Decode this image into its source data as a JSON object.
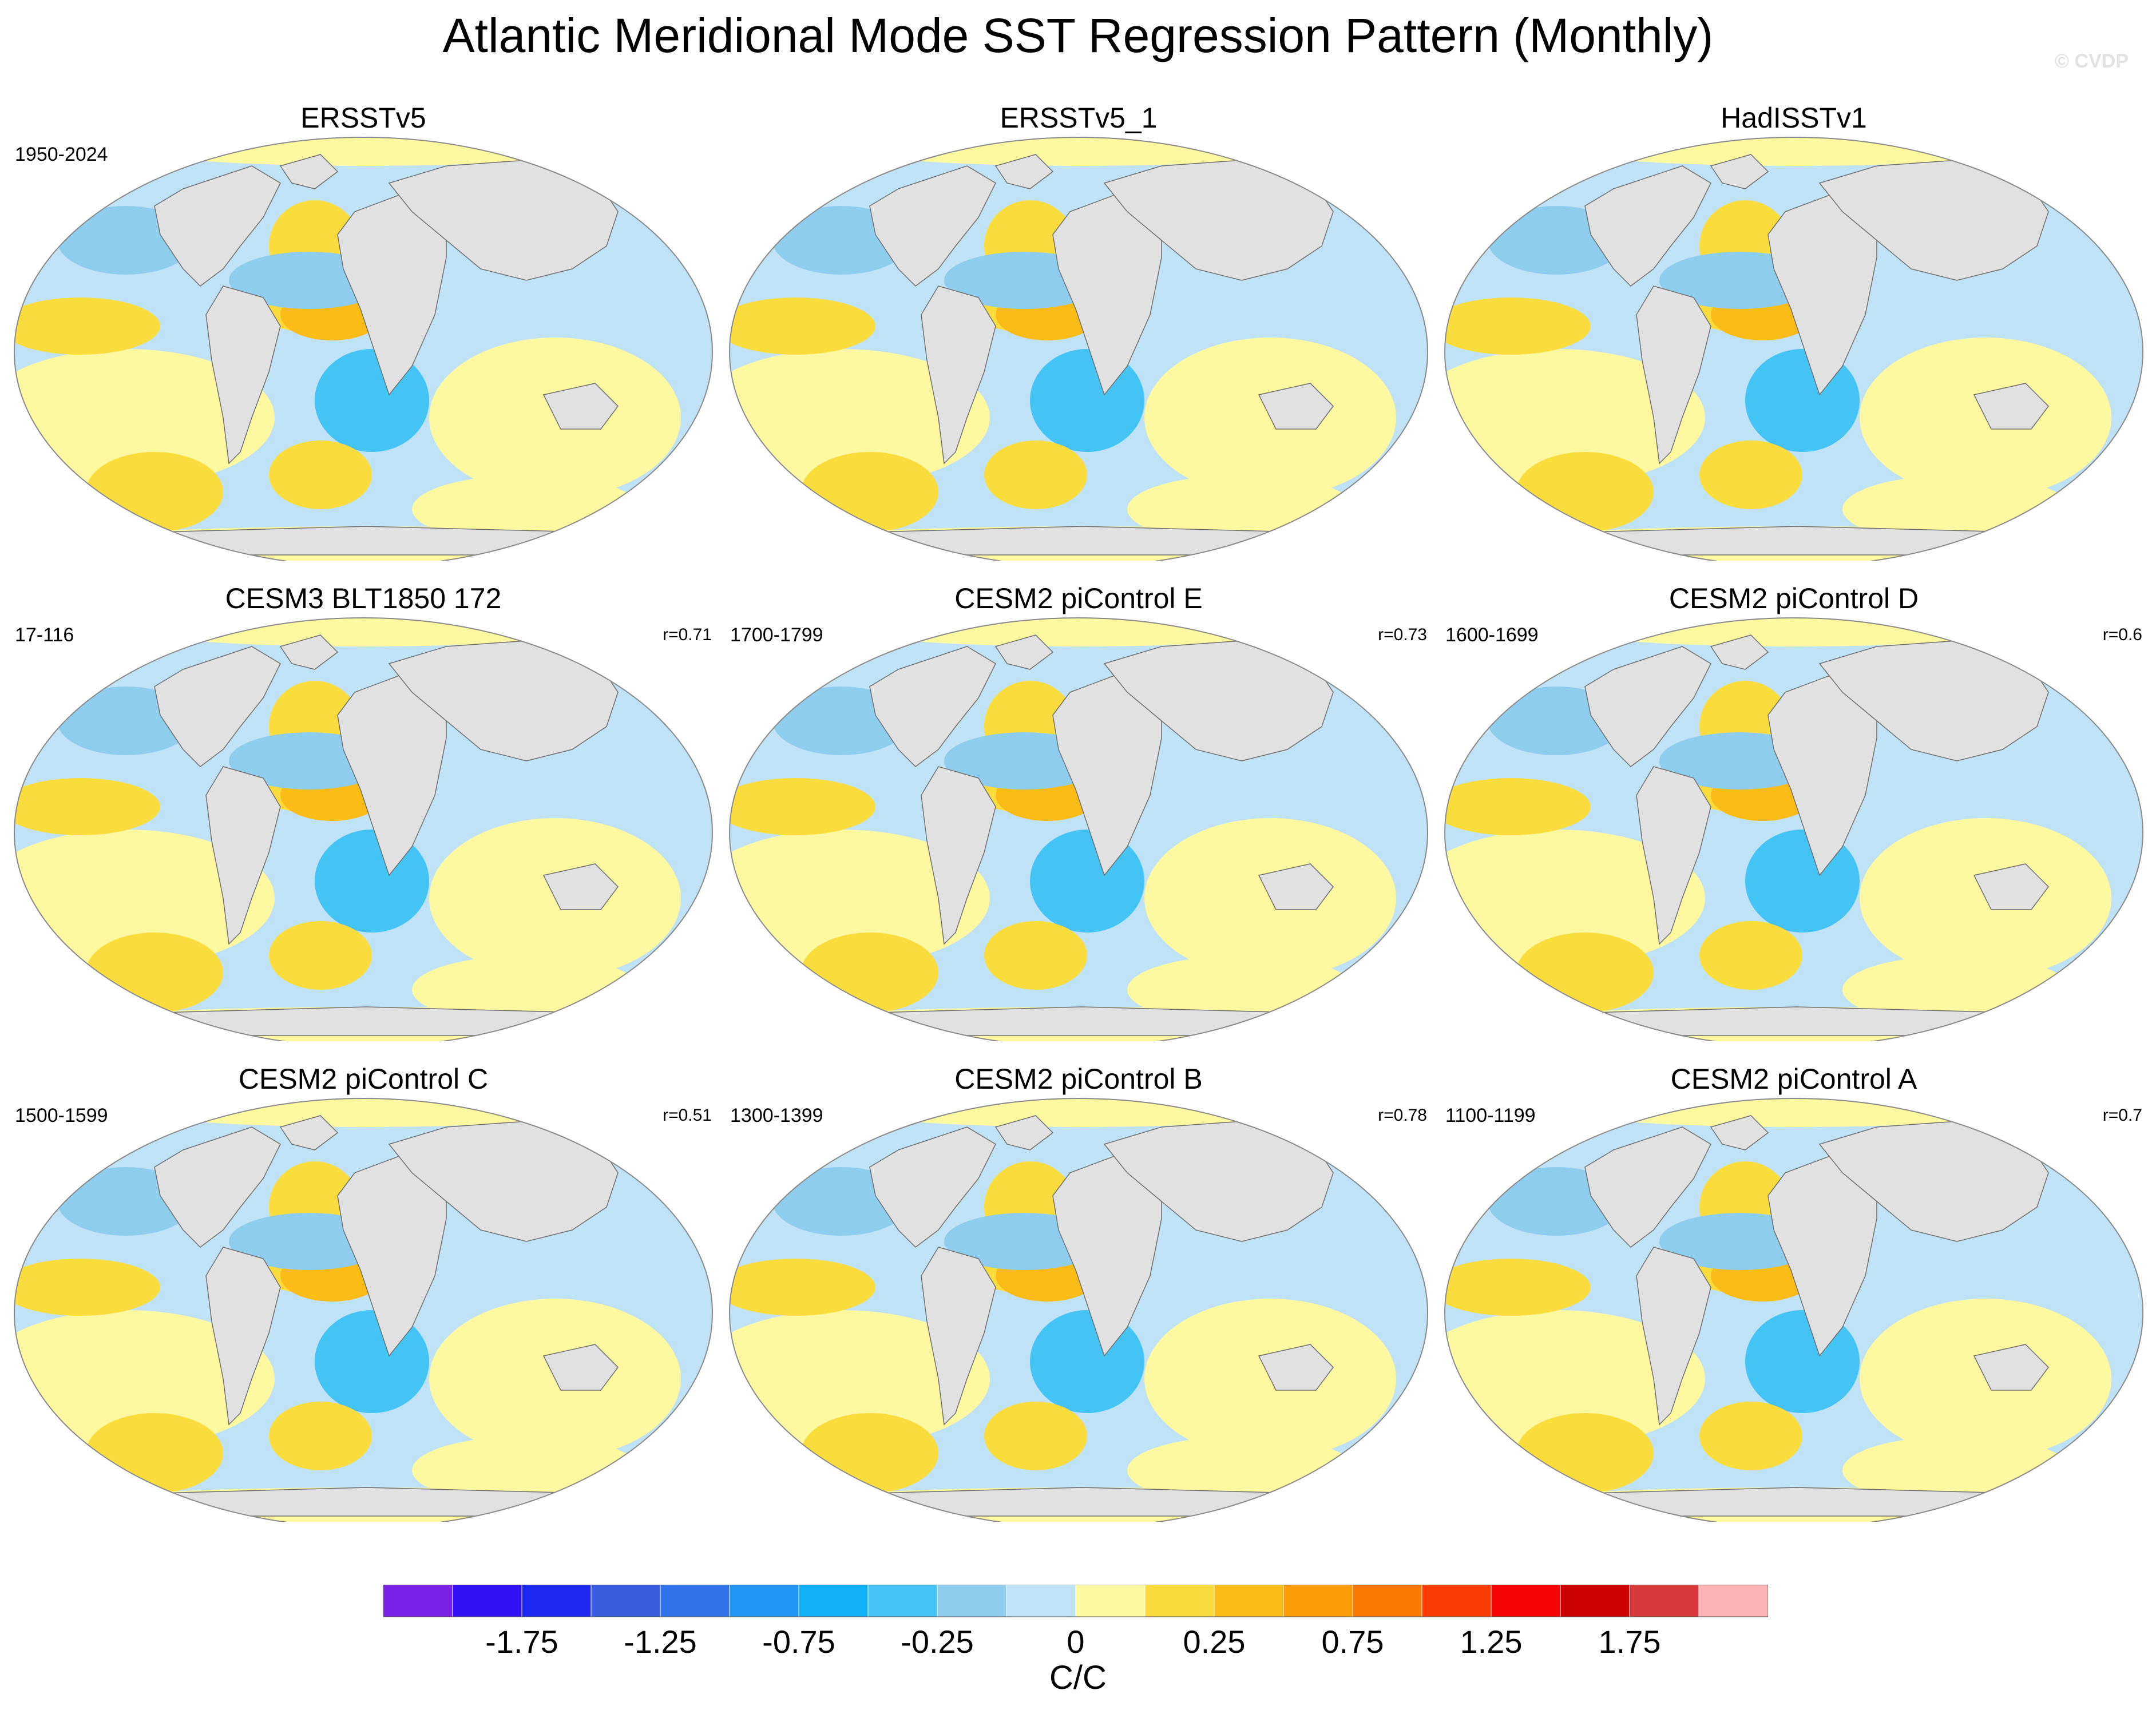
{
  "title": "Atlantic Meridional Mode SST Regression Pattern (Monthly)",
  "watermark": "© CVDP",
  "panels": [
    {
      "title": "ERSSTv5",
      "period": "1950-2024",
      "corr": ""
    },
    {
      "title": "ERSSTv5_1",
      "period": "",
      "corr": ""
    },
    {
      "title": "HadISSTv1",
      "period": "",
      "corr": ""
    },
    {
      "title": "CESM3 BLT1850 172",
      "period": "17-116",
      "corr": "r=0.71"
    },
    {
      "title": "CESM2 piControl E",
      "period": "1700-1799",
      "corr": "r=0.73"
    },
    {
      "title": "CESM2 piControl D",
      "period": "1600-1699",
      "corr": "r=0.6"
    },
    {
      "title": "CESM2 piControl C",
      "period": "1500-1599",
      "corr": "r=0.51"
    },
    {
      "title": "CESM2 piControl B",
      "period": "1300-1399",
      "corr": "r=0.78"
    },
    {
      "title": "CESM2 piControl A",
      "period": "1100-1199",
      "corr": "r=0.7"
    }
  ],
  "colorbar": {
    "colors": [
      "#7b20e8",
      "#3212f5",
      "#1a28f0",
      "#3a5ce0",
      "#2f74ec",
      "#2196f5",
      "#0fb0f5",
      "#44c3f5",
      "#8ecdee",
      "#bfe2f6",
      "#fef8a0",
      "#fadc3c",
      "#fbbc18",
      "#fb9c04",
      "#fb7804",
      "#fb3c04",
      "#f80404",
      "#cc0000",
      "#d83a3a",
      "#fbb4b4"
    ],
    "labels": [
      "-1.75",
      "-1.25",
      "-0.75",
      "-0.25",
      "0",
      "0.25",
      "0.75",
      "1.25",
      "1.75"
    ],
    "units": "C/C"
  },
  "map_colors": {
    "ocean_light_blue": "#bfe2f6",
    "ocean_blue": "#8ecdee",
    "ocean_deep_blue": "#44c3f5",
    "ocean_pale_yellow": "#fef8a0",
    "ocean_yellow": "#fadc3c",
    "ocean_orange": "#fbbc18",
    "land": "#e1e1e1"
  }
}
